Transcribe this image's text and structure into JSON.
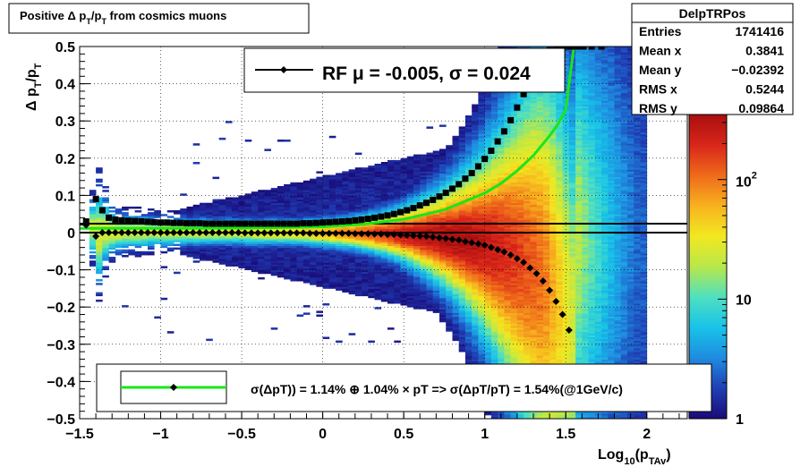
{
  "title_box": {
    "prefix": "Positive ",
    "delta": "Δ",
    "p1": " p",
    "sub1": "T",
    "slash": "/p",
    "sub2": "T",
    "suffix": " from cosmics muons"
  },
  "stats": {
    "name": "DelpTRPos",
    "rows": [
      {
        "label": "Entries",
        "value": "1741416"
      },
      {
        "label": "Mean x",
        "value": "0.3841"
      },
      {
        "label": "Mean y",
        "value": "−0.02392"
      },
      {
        "label": "RMS x",
        "value": "0.5244"
      },
      {
        "label": "RMS y",
        "value": "0.09864"
      }
    ]
  },
  "top_legend": {
    "text": "RF μ = -0.005, σ =   0.024"
  },
  "bottom_legend": {
    "text": "σ(ΔpT)) =  1.14% ⊕  1.04% × pT => σ(ΔpT/pT) =  1.54%(@1GeV/c)"
  },
  "axes": {
    "ylabel": {
      "delta": "Δ",
      "p": " p",
      "sub": "T",
      "rest": "/p",
      "sub2": "T"
    },
    "xlabel": {
      "pre": "Log",
      "sub": "10",
      "mid": "(p",
      "sub2": "TAv",
      "post": ")"
    }
  },
  "colors": {
    "fit_line": "#19e619",
    "marker": "#000000",
    "palette": [
      "#1a0a78",
      "#1f3fb5",
      "#1f8ce0",
      "#18c3e8",
      "#4fe0c0",
      "#b8e84a",
      "#f2e820",
      "#f7b21f",
      "#ef6a1a",
      "#d9261a",
      "#a80f0f"
    ]
  },
  "chart_data": {
    "type": "heatmap",
    "title": "Positive Δ pT/pT from cosmics muons",
    "xlabel": "Log10(pTAv)",
    "ylabel": "Δ pT/pT",
    "xlim": [
      -1.5,
      2.25
    ],
    "ylim": [
      -0.5,
      0.5
    ],
    "x_ticks": [
      "−1.5",
      "−1",
      "−0.5",
      "0",
      "0.5",
      "1",
      "1.5",
      "2"
    ],
    "x_tick_values": [
      -1.5,
      -1,
      -0.5,
      0,
      0.5,
      1,
      1.5,
      2
    ],
    "y_ticks": [
      "−0.5",
      "−0.4",
      "−0.3",
      "−0.2",
      "−0.1",
      "0",
      "0.1",
      "0.2",
      "0.3",
      "0.4",
      "0.5"
    ],
    "y_tick_values": [
      -0.5,
      -0.4,
      -0.3,
      -0.2,
      -0.1,
      0,
      0.1,
      0.2,
      0.3,
      0.4,
      0.5
    ],
    "z_scale": "log",
    "z_ticks": [
      "1",
      "10",
      "10²"
    ],
    "z_tick_values": [
      1,
      10,
      100
    ],
    "zlim": [
      1,
      350
    ],
    "series": [
      {
        "name": "mean",
        "x": [
          -1.46,
          -1.4,
          -1.36,
          -1.32,
          -1.28,
          -1.24,
          -1.2,
          -1.16,
          -1.12,
          -1.08,
          -1.04,
          -1.0,
          -0.96,
          -0.92,
          -0.88,
          -0.84,
          -0.8,
          -0.76,
          -0.72,
          -0.68,
          -0.64,
          -0.6,
          -0.56,
          -0.52,
          -0.48,
          -0.44,
          -0.4,
          -0.36,
          -0.32,
          -0.28,
          -0.24,
          -0.2,
          -0.16,
          -0.12,
          -0.08,
          -0.04,
          0.0,
          0.04,
          0.08,
          0.12,
          0.16,
          0.2,
          0.24,
          0.28,
          0.32,
          0.36,
          0.4,
          0.44,
          0.48,
          0.52,
          0.56,
          0.6,
          0.64,
          0.68,
          0.72,
          0.76,
          0.8,
          0.84,
          0.88,
          0.92,
          0.96,
          1.0,
          1.04,
          1.08,
          1.12,
          1.16,
          1.2,
          1.24,
          1.28,
          1.32,
          1.36,
          1.4,
          1.44,
          1.48,
          1.52
        ],
        "y": [
          0.02,
          -0.01,
          0.0,
          0.0,
          0.0,
          0.0,
          0.0,
          0.0,
          0.0,
          0.0,
          0.0,
          0.0,
          0.0,
          0.0,
          0.0,
          0.0,
          0.0,
          0.0,
          0.0,
          0.0,
          0.0,
          0.0,
          0.0,
          0.0,
          -0.001,
          -0.001,
          -0.001,
          -0.001,
          -0.001,
          -0.001,
          -0.001,
          -0.001,
          -0.001,
          -0.001,
          -0.002,
          -0.002,
          -0.002,
          -0.002,
          -0.002,
          -0.002,
          -0.002,
          -0.003,
          -0.003,
          -0.003,
          -0.004,
          -0.004,
          -0.005,
          -0.005,
          -0.006,
          -0.007,
          -0.008,
          -0.009,
          -0.01,
          -0.012,
          -0.014,
          -0.016,
          -0.018,
          -0.02,
          -0.024,
          -0.027,
          -0.03,
          -0.034,
          -0.04,
          -0.046,
          -0.052,
          -0.06,
          -0.07,
          -0.08,
          -0.095,
          -0.11,
          -0.13,
          -0.155,
          -0.185,
          -0.22,
          -0.262
        ]
      },
      {
        "name": "rms",
        "x": [
          -1.46,
          -1.4,
          -1.36,
          -1.32,
          -1.28,
          -1.24,
          -1.2,
          -1.16,
          -1.12,
          -1.08,
          -1.04,
          -1.0,
          -0.96,
          -0.92,
          -0.88,
          -0.84,
          -0.8,
          -0.76,
          -0.72,
          -0.68,
          -0.64,
          -0.6,
          -0.56,
          -0.52,
          -0.48,
          -0.44,
          -0.4,
          -0.36,
          -0.32,
          -0.28,
          -0.24,
          -0.2,
          -0.16,
          -0.12,
          -0.08,
          -0.04,
          0.0,
          0.04,
          0.08,
          0.12,
          0.16,
          0.2,
          0.24,
          0.28,
          0.32,
          0.36,
          0.4,
          0.44,
          0.48,
          0.52,
          0.56,
          0.6,
          0.64,
          0.68,
          0.72,
          0.76,
          0.8,
          0.84,
          0.88,
          0.92,
          0.96,
          1.0,
          1.04,
          1.08,
          1.12,
          1.16,
          1.2,
          1.24,
          1.28,
          1.32,
          1.36,
          1.4,
          1.44,
          1.48,
          1.52,
          1.55,
          1.58,
          1.61,
          1.66,
          1.72
        ],
        "y": [
          0.03,
          0.09,
          0.06,
          0.04,
          0.035,
          0.033,
          0.032,
          0.031,
          0.03,
          0.029,
          0.028,
          0.027,
          0.027,
          0.026,
          0.026,
          0.025,
          0.025,
          0.025,
          0.024,
          0.024,
          0.024,
          0.024,
          0.024,
          0.024,
          0.024,
          0.024,
          0.024,
          0.024,
          0.024,
          0.024,
          0.024,
          0.024,
          0.024,
          0.025,
          0.025,
          0.026,
          0.027,
          0.028,
          0.029,
          0.03,
          0.031,
          0.033,
          0.035,
          0.037,
          0.04,
          0.043,
          0.046,
          0.05,
          0.055,
          0.06,
          0.066,
          0.073,
          0.08,
          0.088,
          0.097,
          0.107,
          0.118,
          0.13,
          0.145,
          0.16,
          0.178,
          0.198,
          0.22,
          0.245,
          0.272,
          0.302,
          0.336,
          0.372,
          0.41,
          0.44,
          0.47,
          0.49,
          0.5,
          0.5,
          0.5,
          0.5,
          0.5,
          0.5,
          0.5,
          0.5
        ]
      },
      {
        "name": "fit",
        "x": [
          -1.5,
          -1.25,
          -1.0,
          -0.75,
          -0.5,
          -0.25,
          0.0,
          0.25,
          0.5,
          0.75,
          1.0,
          1.1,
          1.2,
          1.3,
          1.4,
          1.45,
          1.5,
          1.55
        ],
        "y": [
          0.0114,
          0.0115,
          0.0116,
          0.0117,
          0.0122,
          0.0135,
          0.0154,
          0.0225,
          0.0359,
          0.061,
          0.106,
          0.132,
          0.166,
          0.207,
          0.26,
          0.29,
          0.33,
          0.5
        ]
      }
    ],
    "horizontal_lines": [
      0.024,
      0.0
    ],
    "legend_top": "RF μ = -0.005, σ =   0.024",
    "legend_bottom": "σ(ΔpT)) =  1.14% ⊕  1.04% × pT => σ(ΔpT/pT) =  1.54%(@1GeV/c)",
    "grid": true
  }
}
